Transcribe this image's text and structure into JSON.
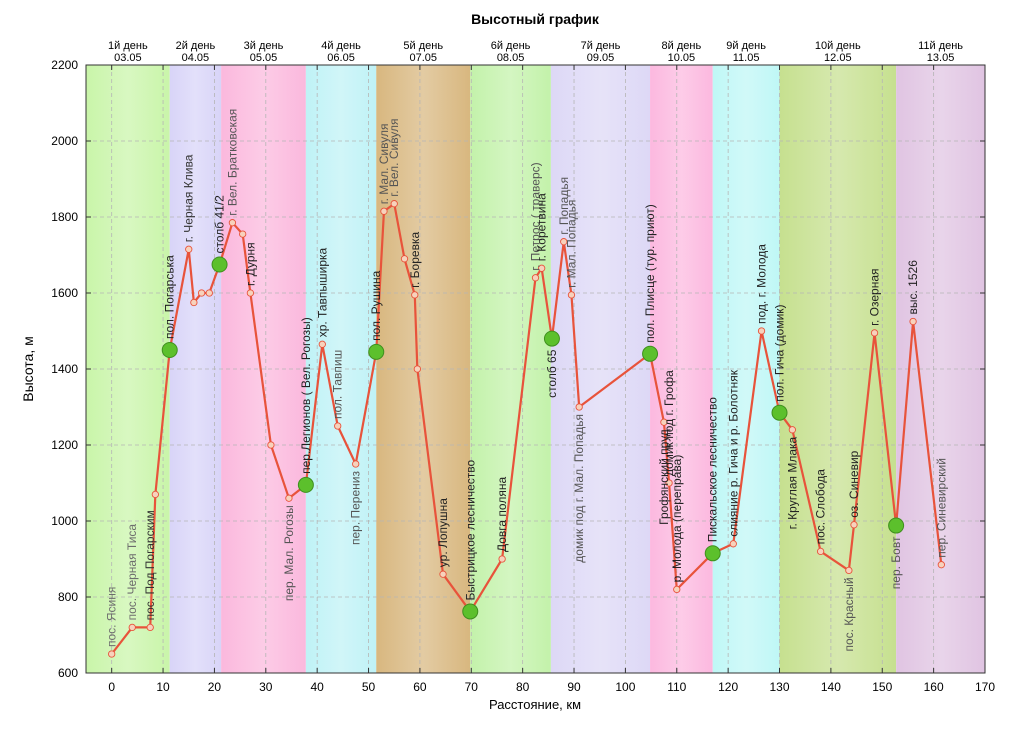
{
  "chart_data": {
    "type": "line",
    "title": "Высотный график",
    "xlabel": "Расстояние, км",
    "ylabel": "Высота, м",
    "xlim": [
      -5,
      170
    ],
    "ylim": [
      600,
      2200
    ],
    "xticks": [
      0,
      10,
      20,
      30,
      40,
      50,
      60,
      70,
      80,
      90,
      100,
      110,
      120,
      130,
      140,
      150,
      160,
      170
    ],
    "yticks": [
      600,
      800,
      1000,
      1200,
      1400,
      1600,
      1800,
      2000,
      2200
    ],
    "days": [
      {
        "label": "1й день",
        "date": "03.05",
        "start": -5,
        "end": 11.3,
        "color": "#c9f5a9"
      },
      {
        "label": "2й день",
        "date": "04.05",
        "start": 11.3,
        "end": 21.3,
        "color": "#d8d4f8"
      },
      {
        "label": "3й день",
        "date": "05.05",
        "start": 21.3,
        "end": 37.8,
        "color": "#fbb8dd"
      },
      {
        "label": "4й день",
        "date": "06.05",
        "start": 37.8,
        "end": 51.5,
        "color": "#bff2f6"
      },
      {
        "label": "5й день",
        "date": "07.05",
        "start": 51.5,
        "end": 69.8,
        "color": "#d8b77f"
      },
      {
        "label": "6й день",
        "date": "08.05",
        "start": 69.8,
        "end": 85.5,
        "color": "#c3f2aa"
      },
      {
        "label": "7й день",
        "date": "09.05",
        "start": 85.5,
        "end": 104.8,
        "color": "#ddd8f6"
      },
      {
        "label": "8й день",
        "date": "10.05",
        "start": 104.8,
        "end": 117.0,
        "color": "#fcb8df"
      },
      {
        "label": "9й день",
        "date": "11.05",
        "start": 117.0,
        "end": 130.0,
        "color": "#bff7f6"
      },
      {
        "label": "10й день",
        "date": "12.05",
        "start": 130.0,
        "end": 152.7,
        "color": "#c6e08f"
      },
      {
        "label": "11й день",
        "date": "13.05",
        "start": 152.7,
        "end": 170,
        "color": "#e0c4e2"
      }
    ],
    "series": [
      {
        "x": [
          0,
          4,
          7.5,
          8.5,
          11.3,
          15,
          16,
          17.5,
          19,
          21,
          23.5,
          25.5,
          27,
          31,
          34.5,
          37.8,
          41,
          44,
          47.5,
          51.5,
          53,
          55,
          57,
          59,
          59.5,
          64.5,
          69.8,
          76,
          82.5,
          83.7,
          85.7,
          88,
          89.5,
          91,
          104.8,
          107.5,
          108.5,
          110,
          117,
          121,
          126.5,
          130,
          132.5,
          138,
          143.5,
          144.5,
          148.5,
          152.7,
          156,
          161.5
        ],
        "y": [
          650,
          720,
          720,
          1070,
          1450,
          1715,
          1575,
          1600,
          1600,
          1675,
          1785,
          1755,
          1600,
          1200,
          1060,
          1095,
          1465,
          1250,
          1150,
          1445,
          1815,
          1835,
          1690,
          1595,
          1400,
          860,
          762,
          900,
          1640,
          1665,
          1480,
          1735,
          1595,
          1300,
          1440,
          1260,
          1100,
          820,
          915,
          940,
          1500,
          1285,
          1240,
          920,
          870,
          990,
          1495,
          988,
          1525,
          885
        ]
      }
    ],
    "key_points_x": [
      11.3,
      21,
      37.8,
      51.5,
      69.8,
      85.7,
      104.8,
      117,
      130,
      152.7
    ],
    "annotations": [
      {
        "text": "пос. Ясиня",
        "x": 0,
        "y": 650,
        "side": "above",
        "color": "#6d6d6d"
      },
      {
        "text": "пос. Черная Тиса",
        "x": 4,
        "y": 720,
        "side": "above",
        "color": "#6d6d6d"
      },
      {
        "text": "пос. Под Погарским",
        "x": 7.5,
        "y": 720,
        "side": "above",
        "color": "#333333"
      },
      {
        "text": "пол. Погарська",
        "x": 11.3,
        "y": 1450,
        "side": "above",
        "color": "#222222"
      },
      {
        "text": "г. Черная Клива",
        "x": 15,
        "y": 1715,
        "side": "above",
        "color": "#333333"
      },
      {
        "text": "столб 41/2",
        "x": 21,
        "y": 1675,
        "side": "above",
        "color": "#222222"
      },
      {
        "text": "г. Вел. Братковская",
        "x": 23.5,
        "y": 1785,
        "side": "above",
        "color": "#555555"
      },
      {
        "text": "г. Дурня",
        "x": 27,
        "y": 1600,
        "side": "above",
        "color": "#222222"
      },
      {
        "text": "пер. Мал. Рогозы",
        "x": 34.5,
        "y": 1060,
        "side": "below",
        "color": "#555555"
      },
      {
        "text": "пер.Легионов ( Вел. Рогозы)",
        "x": 37.8,
        "y": 1095,
        "side": "above",
        "color": "#222222"
      },
      {
        "text": "хр. Тавпыширка",
        "x": 41,
        "y": 1465,
        "side": "above",
        "color": "#222222"
      },
      {
        "text": "пол. Тавпиш",
        "x": 44,
        "y": 1250,
        "side": "above",
        "color": "#555555"
      },
      {
        "text": "пер. Перениз",
        "x": 47.5,
        "y": 1150,
        "side": "below",
        "color": "#555555"
      },
      {
        "text": "пол. Рушина",
        "x": 51.5,
        "y": 1445,
        "side": "above",
        "color": "#222222"
      },
      {
        "text": "г. Мал. Сивуля",
        "x": 53,
        "y": 1815,
        "side": "above",
        "color": "#555555"
      },
      {
        "text": "г. Вел. Сивуля",
        "x": 55,
        "y": 1835,
        "side": "above",
        "color": "#555555"
      },
      {
        "text": "г. Боревка",
        "x": 59,
        "y": 1595,
        "side": "above",
        "color": "#222222"
      },
      {
        "text": "ур. Лопушна",
        "x": 64.5,
        "y": 860,
        "side": "above",
        "color": "#222222"
      },
      {
        "text": "Быстрицкое лесничество",
        "x": 69.8,
        "y": 762,
        "side": "above",
        "color": "#222222"
      },
      {
        "text": "Довга поляна",
        "x": 76,
        "y": 900,
        "side": "above",
        "color": "#222222"
      },
      {
        "text": "г. Петрос  ( траверс)",
        "x": 82.5,
        "y": 1640,
        "side": "above",
        "color": "#555555"
      },
      {
        "text": "г. Коретвина",
        "x": 83.7,
        "y": 1665,
        "side": "above",
        "color": "#222222"
      },
      {
        "text": "столб 65",
        "x": 85.7,
        "y": 1480,
        "side": "below",
        "color": "#222222"
      },
      {
        "text": "г. Попадья",
        "x": 88,
        "y": 1735,
        "side": "above",
        "color": "#555555"
      },
      {
        "text": "г. Мал. Попадья",
        "x": 89.5,
        "y": 1595,
        "side": "above",
        "color": "#555555"
      },
      {
        "text": "домик под г. Мал. Попадья",
        "x": 91,
        "y": 1300,
        "side": "below",
        "color": "#555555"
      },
      {
        "text": "пол. Плисце  (тур. приют)",
        "x": 104.8,
        "y": 1440,
        "side": "above",
        "color": "#222222"
      },
      {
        "text": "Грофянский пруд",
        "x": 107.5,
        "y": 1260,
        "side": "below",
        "color": "#222222"
      },
      {
        "text": "домик под г. Грофа",
        "x": 108.5,
        "y": 1100,
        "side": "above",
        "color": "#222222"
      },
      {
        "text": "р. Молода  (переправа)",
        "x": 110,
        "y": 820,
        "side": "above",
        "color": "#222222"
      },
      {
        "text": "Пискальское лесничество",
        "x": 117,
        "y": 915,
        "side": "above",
        "color": "#222222"
      },
      {
        "text": "слияние р. Гича и р. Болотняк",
        "x": 121,
        "y": 940,
        "side": "above",
        "color": "#222222"
      },
      {
        "text": "под. г. Молода",
        "x": 126.5,
        "y": 1500,
        "side": "above",
        "color": "#222222"
      },
      {
        "text": "пол. Гича  (домик)",
        "x": 130,
        "y": 1285,
        "side": "above",
        "color": "#222222"
      },
      {
        "text": "г. Круглая Млака",
        "x": 132.5,
        "y": 1240,
        "side": "below",
        "color": "#222222"
      },
      {
        "text": "пос. Слобода",
        "x": 138,
        "y": 920,
        "side": "above",
        "color": "#222222"
      },
      {
        "text": "пос. Красный",
        "x": 143.5,
        "y": 870,
        "side": "below",
        "color": "#555555"
      },
      {
        "text": "оз. Синевир",
        "x": 144.5,
        "y": 990,
        "side": "above",
        "color": "#222222"
      },
      {
        "text": "г. Озерная",
        "x": 148.5,
        "y": 1495,
        "side": "above",
        "color": "#222222"
      },
      {
        "text": "пер. Бовт",
        "x": 152.7,
        "y": 988,
        "side": "below",
        "color": "#555555"
      },
      {
        "text": "выс. 1526",
        "x": 156,
        "y": 1525,
        "side": "above",
        "color": "#222222"
      },
      {
        "text": "пер. Синевирский",
        "x": 161.5,
        "y": 885,
        "side": "above",
        "color": "#555555"
      }
    ],
    "line_color": "#e8533b",
    "marker_fill": "#f7d2bc",
    "key_marker_color": "#5cc02c"
  }
}
